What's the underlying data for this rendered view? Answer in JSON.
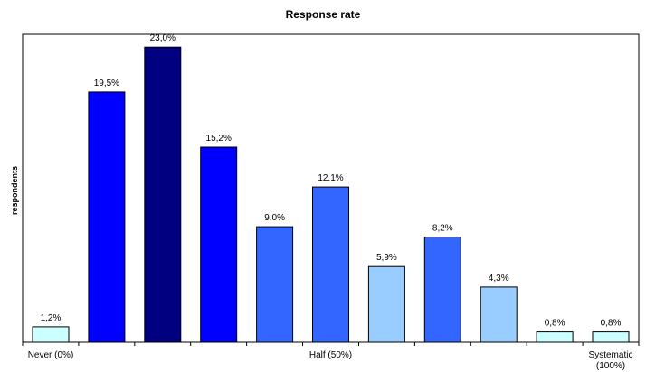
{
  "chart_data": {
    "type": "bar",
    "title": "Response rate",
    "xlabel": "",
    "ylabel": "respondents",
    "categories": [
      "Never (0%)",
      "",
      "",
      "",
      "",
      "Half (50%)",
      "",
      "",
      "",
      "",
      "Systematic (100%)"
    ],
    "values": [
      1.2,
      19.5,
      23.0,
      15.2,
      9.0,
      12.1,
      5.9,
      8.2,
      4.3,
      0.8,
      0.8
    ],
    "data_labels": [
      "1,2%",
      "19,5%",
      "23,0%",
      "15,2%",
      "9,0%",
      "12.1%",
      "5,9%",
      "8,2%",
      "4,3%",
      "0,8%",
      "0,8%"
    ],
    "bar_colors": [
      "#ccffff",
      "#0000ff",
      "#000080",
      "#0000ff",
      "#3366ff",
      "#3366ff",
      "#99ccff",
      "#3366ff",
      "#99ccff",
      "#ccffff",
      "#ccffff"
    ],
    "ylim": [
      0,
      24
    ],
    "grid": false,
    "legend": "none"
  }
}
